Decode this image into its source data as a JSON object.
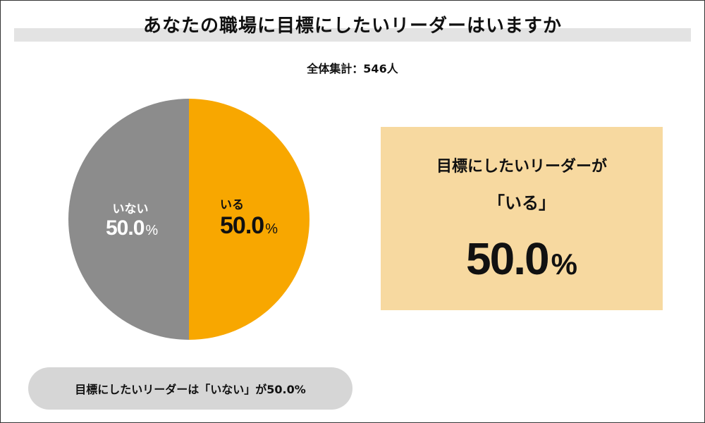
{
  "title": "あなたの職場に目標にしたいリーダーはいますか",
  "total": "全体集計：546人",
  "colors": {
    "iru": "#f8a700",
    "inai": "#8c8c8c",
    "title_bar": "#e3e3e3",
    "highlight_bg": "#f7d9a0",
    "pill_bg": "#d6d6d6"
  },
  "chart_data": {
    "type": "pie",
    "title": "あなたの職場に目標にしたいリーダーはいますか",
    "categories": [
      "いる",
      "いない"
    ],
    "values": [
      50.0,
      50.0
    ],
    "unit": "%",
    "total_n": 546,
    "slice_labels": {
      "iru": {
        "name": "いる",
        "value": "50.0",
        "unit": "%"
      },
      "inai": {
        "name": "いない",
        "value": "50.0",
        "unit": "%"
      }
    }
  },
  "highlight": {
    "line1": "目標にしたいリーダーが",
    "line2": "「いる」",
    "value": "50.0",
    "unit": "%"
  },
  "note": "目標にしたいリーダーは「いない」が50.0%"
}
